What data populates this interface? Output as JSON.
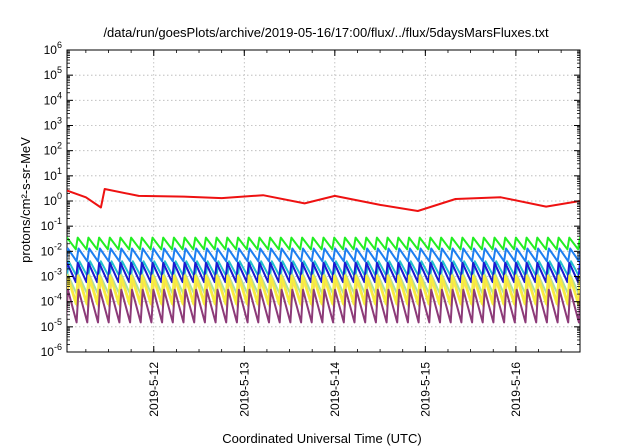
{
  "chart_data": {
    "type": "line",
    "title": "/data/run/goesPlots/archive/2019-05-16/17:00/flux/../flux/5daysMarsFluxes.txt",
    "xlabel": "Coordinated Universal Time (UTC)",
    "ylabel": "protons/cm²-s-sr-MeV",
    "y_scale": "log",
    "ylim": [
      1e-06,
      1000000.0
    ],
    "y_ticks": [
      {
        "base": "10",
        "exp": "6",
        "v": 6
      },
      {
        "base": "10",
        "exp": "5",
        "v": 5
      },
      {
        "base": "10",
        "exp": "4",
        "v": 4
      },
      {
        "base": "10",
        "exp": "3",
        "v": 3
      },
      {
        "base": "10",
        "exp": "2",
        "v": 2
      },
      {
        "base": "10",
        "exp": "1",
        "v": 1
      },
      {
        "base": "10",
        "exp": "0",
        "v": 0
      },
      {
        "base": "10",
        "exp": "-1",
        "v": -1
      },
      {
        "base": "10",
        "exp": "-2",
        "v": -2
      },
      {
        "base": "10",
        "exp": "-3",
        "v": -3
      },
      {
        "base": "10",
        "exp": "-4",
        "v": -4
      },
      {
        "base": "10",
        "exp": "-5",
        "v": -5
      },
      {
        "base": "10",
        "exp": "-6",
        "v": -6
      }
    ],
    "xlim": [
      "2019-05-11 01:00",
      "2019-05-16 17:00"
    ],
    "x_ticks": [
      "2019-5-12",
      "2019-5-13",
      "2019-5-14",
      "2019-5-15",
      "2019-5-16"
    ],
    "grid": true,
    "series": [
      {
        "color": "#ee1111",
        "values": [
          {
            "x": "2019-05-11 01:00",
            "y": 2.6
          },
          {
            "x": "2019-05-11 06:00",
            "y": 1.4
          },
          {
            "x": "2019-05-11 10:00",
            "y": 0.55
          },
          {
            "x": "2019-05-11 11:00",
            "y": 3.0
          },
          {
            "x": "2019-05-11 20:00",
            "y": 1.6
          },
          {
            "x": "2019-05-12 08:00",
            "y": 1.5
          },
          {
            "x": "2019-05-12 18:00",
            "y": 1.3
          },
          {
            "x": "2019-05-13 05:00",
            "y": 1.7
          },
          {
            "x": "2019-05-13 16:00",
            "y": 0.8
          },
          {
            "x": "2019-05-14 00:00",
            "y": 1.6
          },
          {
            "x": "2019-05-14 12:00",
            "y": 0.7
          },
          {
            "x": "2019-05-14 22:00",
            "y": 0.4
          },
          {
            "x": "2019-05-15 08:00",
            "y": 1.2
          },
          {
            "x": "2019-05-15 20:00",
            "y": 1.4
          },
          {
            "x": "2019-05-16 08:00",
            "y": 0.6
          },
          {
            "x": "2019-05-16 17:00",
            "y": 1.0
          }
        ]
      },
      {
        "color": "#22ee22",
        "low": 0.012,
        "high": 0.035
      },
      {
        "color": "#1e7ff0",
        "low": 0.004,
        "high": 0.013
      },
      {
        "color": "#22c0d0",
        "low": 0.0009,
        "high": 0.004
      },
      {
        "color": "#1a1ad0",
        "low": 0.0006,
        "high": 0.0035
      },
      {
        "color": "#a7e3a0",
        "low": 0.0002,
        "high": 0.0012
      },
      {
        "color": "#f5d85a",
        "low": 6e-05,
        "high": 0.0009
      },
      {
        "color": "#f8f03c",
        "low": 8e-05,
        "high": 0.0011
      },
      {
        "color": "#8c3a78",
        "low": 1.5e-05,
        "high": 0.0003
      }
    ]
  }
}
